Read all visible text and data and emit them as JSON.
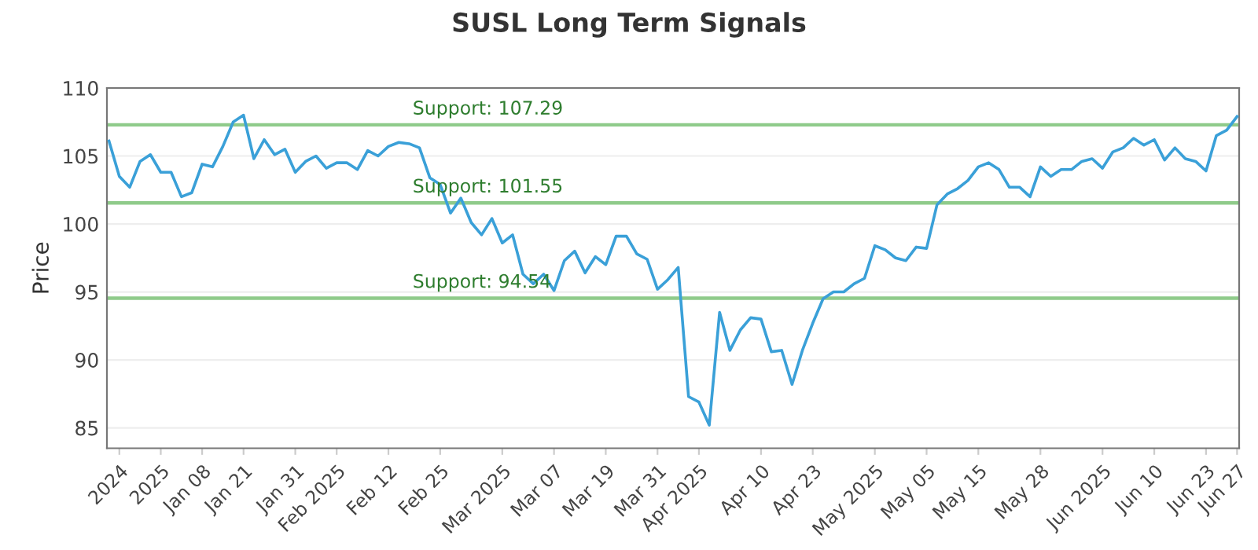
{
  "chart_data": {
    "type": "line",
    "title": "SUSL Long Term Signals",
    "ylabel": "Price",
    "ylim": [
      83.5,
      110
    ],
    "yticks": [
      85,
      90,
      95,
      100,
      105,
      110
    ],
    "categories": [
      null,
      "2024",
      null,
      null,
      null,
      "2025",
      null,
      null,
      null,
      "Jan 08",
      null,
      null,
      null,
      "Jan 21",
      null,
      null,
      null,
      null,
      "Jan 31",
      null,
      null,
      null,
      "Feb 2025",
      null,
      null,
      null,
      null,
      "Feb 12",
      null,
      null,
      null,
      null,
      "Feb 25",
      null,
      null,
      null,
      null,
      null,
      "Mar 2025",
      null,
      null,
      null,
      null,
      "Mar 07",
      null,
      null,
      null,
      null,
      "Mar 19",
      null,
      null,
      null,
      null,
      "Mar 31",
      null,
      null,
      null,
      "Apr 2025",
      null,
      null,
      null,
      null,
      null,
      "Apr 10",
      null,
      null,
      null,
      null,
      "Apr 23",
      null,
      null,
      null,
      null,
      null,
      "May 2025",
      null,
      null,
      null,
      null,
      "May 05",
      null,
      null,
      null,
      null,
      "May 15",
      null,
      null,
      null,
      null,
      null,
      "May 28",
      null,
      null,
      null,
      null,
      null,
      "Jun 2025",
      null,
      null,
      null,
      null,
      "Jun 10",
      null,
      null,
      null,
      null,
      "Jun 23",
      null,
      null,
      "Jun 27"
    ],
    "grid": "y",
    "legend": false,
    "marker": "none",
    "line_style": "solid",
    "series": [
      {
        "color": "#3aa0d8",
        "values": [
          106.1,
          103.5,
          102.7,
          104.6,
          105.1,
          103.8,
          103.8,
          102.0,
          102.3,
          104.4,
          104.2,
          105.7,
          107.5,
          108.0,
          104.8,
          106.2,
          105.1,
          105.5,
          103.8,
          104.6,
          105.0,
          104.1,
          104.5,
          104.5,
          104.0,
          105.4,
          105.0,
          105.7,
          106.0,
          105.9,
          105.6,
          103.4,
          102.9,
          100.8,
          101.9,
          100.1,
          99.2,
          100.4,
          98.6,
          99.2,
          96.3,
          95.6,
          96.3,
          95.1,
          97.3,
          98.0,
          96.4,
          97.6,
          97.0,
          99.1,
          99.1,
          97.8,
          97.4,
          95.2,
          95.9,
          96.8,
          87.3,
          86.9,
          85.2,
          93.5,
          90.7,
          92.2,
          93.1,
          93.0,
          90.6,
          90.7,
          88.2,
          90.7,
          92.7,
          94.5,
          95.0,
          95.0,
          95.6,
          96.0,
          98.4,
          98.1,
          97.5,
          97.3,
          98.3,
          98.2,
          101.4,
          102.2,
          102.6,
          103.2,
          104.2,
          104.5,
          104.0,
          102.7,
          102.7,
          102.0,
          104.2,
          103.5,
          104.0,
          104.0,
          104.6,
          104.8,
          104.1,
          105.3,
          105.6,
          106.3,
          105.8,
          106.2,
          104.7,
          105.6,
          104.8,
          104.6,
          103.9,
          106.5,
          106.9,
          107.9
        ]
      }
    ],
    "ref_lines": [
      {
        "axis": "y",
        "value": 107.29,
        "label": "Support: 107.29",
        "color": "#8fcb8a"
      },
      {
        "axis": "y",
        "value": 101.55,
        "label": "Support: 101.55",
        "color": "#8fcb8a"
      },
      {
        "axis": "y",
        "value": 94.54,
        "label": "Support: 94.54",
        "color": "#8fcb8a"
      }
    ]
  }
}
